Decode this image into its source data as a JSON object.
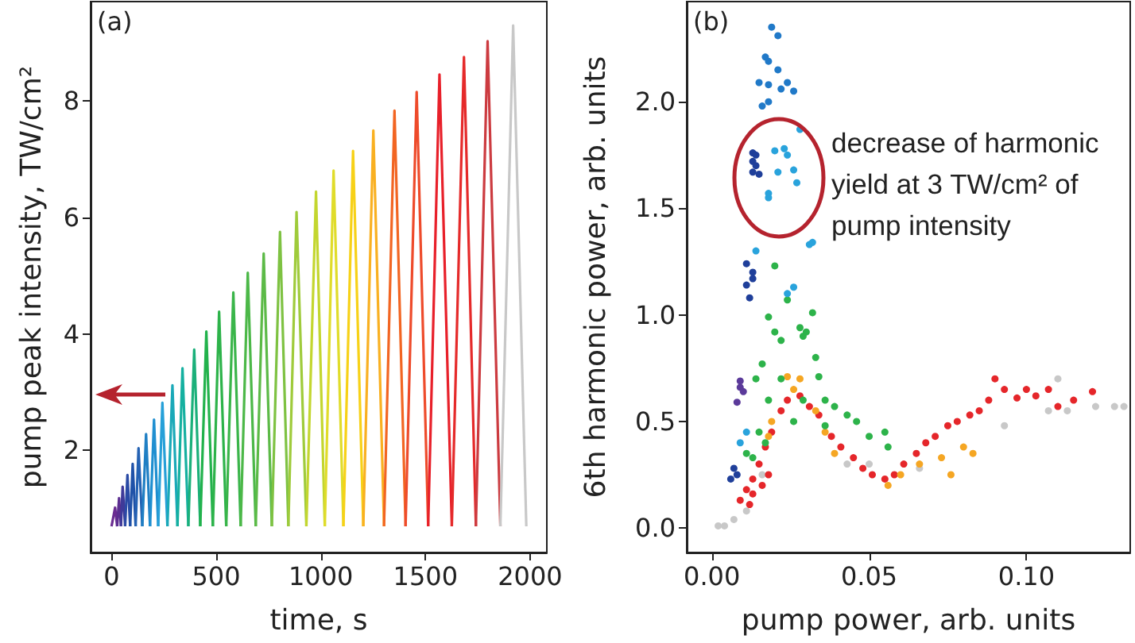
{
  "chart_data": [
    {
      "type": "line",
      "xlabel": "time, s",
      "ylabel": "pump peak intensity, TW/cm²",
      "annotations": [
        "(a)"
      ],
      "marker": "none",
      "xlim": [
        -100,
        2080
      ],
      "xticks": [
        0,
        500,
        1000,
        1500,
        2000
      ],
      "ylim": [
        0.25,
        9.7
      ],
      "yticks": [
        2,
        4,
        6,
        8
      ],
      "series": [
        {
          "color": "#6a2c91",
          "x": [
            0,
            17,
            27
          ],
          "values": [
            0.7,
            1.02,
            0.7
          ]
        },
        {
          "color": "#5b2d90",
          "x": [
            27,
            36,
            45
          ],
          "values": [
            0.7,
            1.18,
            0.7
          ]
        },
        {
          "color": "#3f3a99",
          "x": [
            45,
            53,
            65
          ],
          "values": [
            0.7,
            1.38,
            0.7
          ]
        },
        {
          "color": "#2a4aa5",
          "x": [
            65,
            76,
            89
          ],
          "values": [
            0.7,
            1.58,
            0.7
          ]
        },
        {
          "color": "#1f52a8",
          "x": [
            89,
            101,
            115
          ],
          "values": [
            0.7,
            1.77,
            0.7
          ]
        },
        {
          "color": "#2462b3",
          "x": [
            115,
            129,
            147
          ],
          "values": [
            0.7,
            2.04,
            0.7
          ]
        },
        {
          "color": "#1f7fc4",
          "x": [
            147,
            165,
            184
          ],
          "values": [
            0.7,
            2.28,
            0.7
          ]
        },
        {
          "color": "#1f8fd0",
          "x": [
            184,
            203,
            223
          ],
          "values": [
            0.7,
            2.53,
            0.7
          ]
        },
        {
          "color": "#26a0d8",
          "x": [
            223,
            243,
            267
          ],
          "values": [
            0.7,
            2.82,
            0.7
          ]
        },
        {
          "color": "#1aa9b8",
          "x": [
            267,
            291,
            315
          ],
          "values": [
            0.7,
            3.12,
            0.7
          ]
        },
        {
          "color": "#15b0a0",
          "x": [
            315,
            339,
            367
          ],
          "values": [
            0.7,
            3.41,
            0.7
          ]
        },
        {
          "color": "#1bb07a",
          "x": [
            367,
            395,
            424
          ],
          "values": [
            0.7,
            3.73,
            0.7
          ]
        },
        {
          "color": "#22b24c",
          "x": [
            424,
            453,
            484
          ],
          "values": [
            0.7,
            4.04,
            0.7
          ]
        },
        {
          "color": "#2db34a",
          "x": [
            484,
            514,
            548
          ],
          "values": [
            0.7,
            4.38,
            0.7
          ]
        },
        {
          "color": "#3ab54a",
          "x": [
            548,
            582,
            617
          ],
          "values": [
            0.7,
            4.71,
            0.7
          ]
        },
        {
          "color": "#4cb848",
          "x": [
            617,
            651,
            689
          ],
          "values": [
            0.7,
            5.05,
            0.7
          ]
        },
        {
          "color": "#5cba47",
          "x": [
            689,
            727,
            766
          ],
          "values": [
            0.7,
            5.38,
            0.7
          ]
        },
        {
          "color": "#7ec242",
          "x": [
            766,
            805,
            845
          ],
          "values": [
            0.7,
            5.75,
            0.7
          ]
        },
        {
          "color": "#9fcb3b",
          "x": [
            845,
            884,
            931
          ],
          "values": [
            0.7,
            6.09,
            0.7
          ]
        },
        {
          "color": "#c3d62f",
          "x": [
            931,
            977,
            1019
          ],
          "values": [
            0.7,
            6.44,
            0.7
          ]
        },
        {
          "color": "#e0dc2a",
          "x": [
            1019,
            1061,
            1108
          ],
          "values": [
            0.7,
            6.8,
            0.7
          ]
        },
        {
          "color": "#f7d117",
          "x": [
            1108,
            1154,
            1203
          ],
          "values": [
            0.7,
            7.14,
            0.7
          ]
        },
        {
          "color": "#f9b021",
          "x": [
            1203,
            1251,
            1302
          ],
          "values": [
            0.7,
            7.49,
            0.7
          ]
        },
        {
          "color": "#f26522",
          "x": [
            1302,
            1352,
            1405
          ],
          "values": [
            0.7,
            7.83,
            0.7
          ]
        },
        {
          "color": "#ee4b2b",
          "x": [
            1405,
            1458,
            1513
          ],
          "values": [
            0.7,
            8.15,
            0.7
          ]
        },
        {
          "color": "#e8202a",
          "x": [
            1513,
            1567,
            1626
          ],
          "values": [
            0.7,
            8.45,
            0.7
          ]
        },
        {
          "color": "#e52a2a",
          "x": [
            1626,
            1684,
            1741
          ],
          "values": [
            0.7,
            8.75,
            0.7
          ]
        },
        {
          "color": "#cc3b40",
          "x": [
            1741,
            1797,
            1858
          ],
          "values": [
            0.7,
            9.02,
            0.7
          ]
        },
        {
          "color": "#c8c8c8",
          "x": [
            1858,
            1919,
            1982
          ],
          "values": [
            0.7,
            9.29,
            0.7
          ]
        }
      ]
    },
    {
      "type": "scatter",
      "xlabel": "pump power, arb. units",
      "ylabel": "6th harmonic power, arb. units",
      "annotations": [
        "(b)",
        "decrease of harmonic yield at 3 TW/cm² of pump intensity"
      ],
      "marker": "circle",
      "xlim": [
        -0.008,
        0.133
      ],
      "xticks": [
        {
          "value": 0,
          "label": "0.00"
        },
        {
          "value": 0.05,
          "label": "0.05"
        },
        {
          "value": 0.1,
          "label": "0.10"
        }
      ],
      "ylim": [
        -0.115,
        2.47
      ],
      "yticks": [
        {
          "value": 0,
          "label": "0.0"
        },
        {
          "value": 0.5,
          "label": "0.5"
        },
        {
          "value": 1,
          "label": "1.0"
        },
        {
          "value": 1.5,
          "label": "1.5"
        },
        {
          "value": 2,
          "label": "2.0"
        }
      ],
      "series": [
        {
          "color": "#c8c8c8",
          "x": [
            0.002,
            0.004,
            0.007,
            0.011,
            0.016,
            0.043,
            0.05,
            0.066,
            0.093,
            0.107,
            0.113,
            0.122,
            0.128,
            0.131,
            0.11
          ],
          "values": [
            0.01,
            0.01,
            0.04,
            0.08,
            0.25,
            0.3,
            0.3,
            0.28,
            0.48,
            0.55,
            0.55,
            0.57,
            0.57,
            0.57,
            0.7
          ]
        },
        {
          "color": "#e5262a",
          "x": [
            0.009,
            0.011,
            0.013,
            0.015,
            0.017,
            0.019,
            0.022,
            0.024,
            0.028,
            0.031,
            0.034,
            0.038,
            0.041,
            0.045,
            0.048,
            0.051,
            0.055,
            0.058,
            0.061,
            0.065,
            0.068,
            0.071,
            0.075,
            0.078,
            0.082,
            0.085,
            0.088,
            0.09,
            0.093,
            0.097,
            0.1,
            0.103,
            0.107,
            0.11,
            0.115,
            0.121,
            0.013,
            0.016,
            0.018,
            0.012
          ],
          "values": [
            0.13,
            0.18,
            0.23,
            0.3,
            0.38,
            0.45,
            0.55,
            0.6,
            0.62,
            0.57,
            0.53,
            0.43,
            0.38,
            0.33,
            0.28,
            0.25,
            0.23,
            0.25,
            0.3,
            0.35,
            0.4,
            0.43,
            0.48,
            0.5,
            0.53,
            0.55,
            0.6,
            0.7,
            0.65,
            0.61,
            0.65,
            0.62,
            0.65,
            0.57,
            0.6,
            0.64,
            0.16,
            0.2,
            0.25,
            0.11
          ]
        },
        {
          "color": "#f5a623",
          "x": [
            0.024,
            0.028,
            0.026,
            0.033,
            0.019,
            0.018,
            0.036,
            0.039,
            0.06,
            0.066,
            0.073,
            0.076,
            0.08,
            0.083,
            0.056
          ],
          "values": [
            0.71,
            0.7,
            0.65,
            0.55,
            0.5,
            0.43,
            0.45,
            0.35,
            0.25,
            0.3,
            0.33,
            0.25,
            0.38,
            0.35,
            0.2
          ]
        },
        {
          "color": "#2db34a",
          "x": [
            0.02,
            0.024,
            0.018,
            0.02,
            0.022,
            0.028,
            0.029,
            0.032,
            0.03,
            0.033,
            0.034,
            0.036,
            0.039,
            0.043,
            0.046,
            0.05,
            0.055,
            0.056,
            0.036,
            0.016,
            0.014,
            0.018,
            0.022,
            0.026,
            0.029,
            0.015,
            0.017,
            0.011,
            0.013
          ],
          "values": [
            1.23,
            1.07,
            0.99,
            0.92,
            0.88,
            0.94,
            0.9,
            1.01,
            0.92,
            0.8,
            0.71,
            0.6,
            0.57,
            0.53,
            0.5,
            0.43,
            0.45,
            0.38,
            0.48,
            0.77,
            0.7,
            0.6,
            0.7,
            0.5,
            0.6,
            0.45,
            0.4,
            0.35,
            0.33
          ]
        },
        {
          "color": "#29a3dc",
          "x": [
            0.028,
            0.023,
            0.024,
            0.02,
            0.026,
            0.027,
            0.018,
            0.018,
            0.021,
            0.031,
            0.032,
            0.024,
            0.026,
            0.014,
            0.009,
            0.011
          ],
          "values": [
            1.87,
            1.78,
            1.75,
            1.77,
            1.68,
            1.62,
            1.57,
            1.55,
            1.67,
            1.33,
            1.34,
            1.1,
            1.13,
            1.3,
            0.4,
            0.45
          ]
        },
        {
          "color": "#2079c8",
          "x": [
            0.019,
            0.021,
            0.017,
            0.018,
            0.021,
            0.015,
            0.018,
            0.022,
            0.024,
            0.026,
            0.018,
            0.016
          ],
          "values": [
            2.35,
            2.31,
            2.21,
            2.19,
            2.15,
            2.09,
            2.08,
            2.06,
            2.09,
            2.05,
            2.0,
            1.98
          ]
        },
        {
          "color": "#1f3f9a",
          "x": [
            0.013,
            0.014,
            0.013,
            0.014,
            0.013,
            0.015,
            0.011,
            0.013,
            0.011,
            0.013,
            0.012,
            0.007,
            0.008,
            0.006
          ],
          "values": [
            1.76,
            1.75,
            1.72,
            1.7,
            1.67,
            1.66,
            1.24,
            1.2,
            1.14,
            1.17,
            1.08,
            0.28,
            0.25,
            0.23
          ]
        },
        {
          "color": "#5b3a9a",
          "x": [
            0.009,
            0.01,
            0.008,
            0.009
          ],
          "values": [
            0.69,
            0.64,
            0.59,
            0.66
          ]
        }
      ]
    }
  ]
}
